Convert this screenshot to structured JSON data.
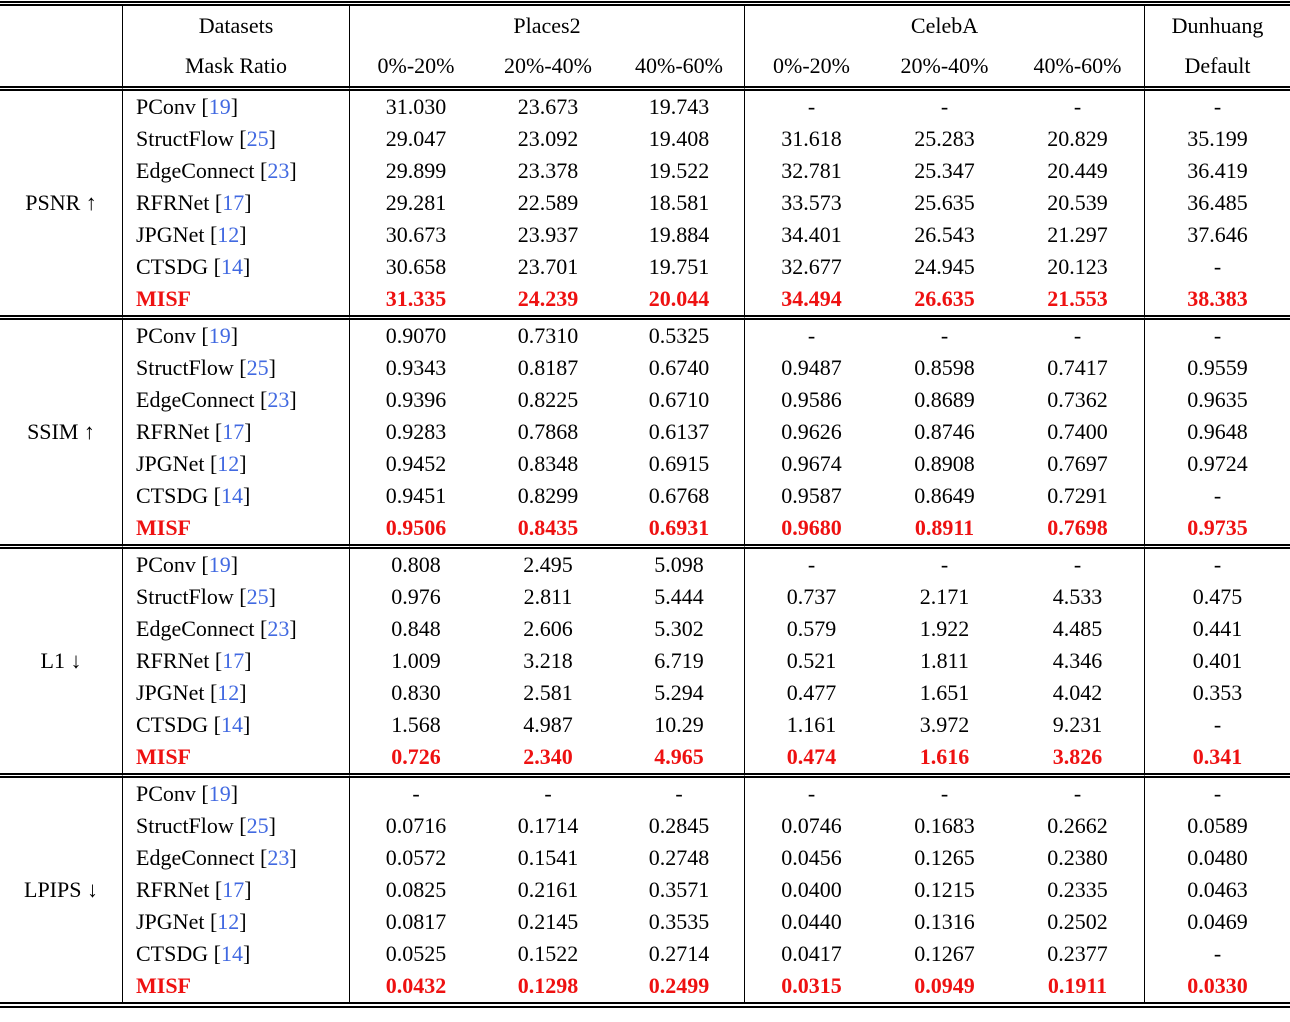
{
  "colors": {
    "highlight_red": "#ee1111",
    "citation_blue": "#4169e1",
    "rule_black": "#000000",
    "background": "#ffffff"
  },
  "header": {
    "datasets_label": "Datasets",
    "mask_ratio_label": "Mask Ratio",
    "groups": [
      {
        "name": "Places2",
        "cols": [
          "0%-20%",
          "20%-40%",
          "40%-60%"
        ]
      },
      {
        "name": "CelebA",
        "cols": [
          "0%-20%",
          "20%-40%",
          "40%-60%"
        ]
      },
      {
        "name": "Dunhuang",
        "cols": [
          "Default"
        ]
      }
    ]
  },
  "sections": [
    {
      "metric": "PSNR ↑",
      "rows": [
        {
          "method": "PConv",
          "ref": "19",
          "highlight": false,
          "values": [
            "31.030",
            "23.673",
            "19.743",
            "-",
            "-",
            "-",
            "-"
          ]
        },
        {
          "method": "StructFlow",
          "ref": "25",
          "highlight": false,
          "values": [
            "29.047",
            "23.092",
            "19.408",
            "31.618",
            "25.283",
            "20.829",
            "35.199"
          ]
        },
        {
          "method": "EdgeConnect",
          "ref": "23",
          "highlight": false,
          "values": [
            "29.899",
            "23.378",
            "19.522",
            "32.781",
            "25.347",
            "20.449",
            "36.419"
          ]
        },
        {
          "method": "RFRNet",
          "ref": "17",
          "highlight": false,
          "values": [
            "29.281",
            "22.589",
            "18.581",
            "33.573",
            "25.635",
            "20.539",
            "36.485"
          ]
        },
        {
          "method": "JPGNet",
          "ref": "12",
          "highlight": false,
          "values": [
            "30.673",
            "23.937",
            "19.884",
            "34.401",
            "26.543",
            "21.297",
            "37.646"
          ]
        },
        {
          "method": "CTSDG",
          "ref": "14",
          "highlight": false,
          "values": [
            "30.658",
            "23.701",
            "19.751",
            "32.677",
            "24.945",
            "20.123",
            "-"
          ]
        },
        {
          "method": "MISF",
          "ref": null,
          "highlight": true,
          "values": [
            "31.335",
            "24.239",
            "20.044",
            "34.494",
            "26.635",
            "21.553",
            "38.383"
          ]
        }
      ]
    },
    {
      "metric": "SSIM ↑",
      "rows": [
        {
          "method": "PConv",
          "ref": "19",
          "highlight": false,
          "values": [
            "0.9070",
            "0.7310",
            "0.5325",
            "-",
            "-",
            "-",
            "-"
          ]
        },
        {
          "method": "StructFlow",
          "ref": "25",
          "highlight": false,
          "values": [
            "0.9343",
            "0.8187",
            "0.6740",
            "0.9487",
            "0.8598",
            "0.7417",
            "0.9559"
          ]
        },
        {
          "method": "EdgeConnect",
          "ref": "23",
          "highlight": false,
          "values": [
            "0.9396",
            "0.8225",
            "0.6710",
            "0.9586",
            "0.8689",
            "0.7362",
            "0.9635"
          ]
        },
        {
          "method": "RFRNet",
          "ref": "17",
          "highlight": false,
          "values": [
            "0.9283",
            "0.7868",
            "0.6137",
            "0.9626",
            "0.8746",
            "0.7400",
            "0.9648"
          ]
        },
        {
          "method": "JPGNet",
          "ref": "12",
          "highlight": false,
          "values": [
            "0.9452",
            "0.8348",
            "0.6915",
            "0.9674",
            "0.8908",
            "0.7697",
            "0.9724"
          ]
        },
        {
          "method": "CTSDG",
          "ref": "14",
          "highlight": false,
          "values": [
            "0.9451",
            "0.8299",
            "0.6768",
            "0.9587",
            "0.8649",
            "0.7291",
            "-"
          ]
        },
        {
          "method": "MISF",
          "ref": null,
          "highlight": true,
          "values": [
            "0.9506",
            "0.8435",
            "0.6931",
            "0.9680",
            "0.8911",
            "0.7698",
            "0.9735"
          ]
        }
      ]
    },
    {
      "metric": "L1 ↓",
      "rows": [
        {
          "method": "PConv",
          "ref": "19",
          "highlight": false,
          "values": [
            "0.808",
            "2.495",
            "5.098",
            "-",
            "-",
            "-",
            "-"
          ]
        },
        {
          "method": "StructFlow",
          "ref": "25",
          "highlight": false,
          "values": [
            "0.976",
            "2.811",
            "5.444",
            "0.737",
            "2.171",
            "4.533",
            "0.475"
          ]
        },
        {
          "method": "EdgeConnect",
          "ref": "23",
          "highlight": false,
          "values": [
            "0.848",
            "2.606",
            "5.302",
            "0.579",
            "1.922",
            "4.485",
            "0.441"
          ]
        },
        {
          "method": "RFRNet",
          "ref": "17",
          "highlight": false,
          "values": [
            "1.009",
            "3.218",
            "6.719",
            "0.521",
            "1.811",
            "4.346",
            "0.401"
          ]
        },
        {
          "method": "JPGNet",
          "ref": "12",
          "highlight": false,
          "values": [
            "0.830",
            "2.581",
            "5.294",
            "0.477",
            "1.651",
            "4.042",
            "0.353"
          ]
        },
        {
          "method": "CTSDG",
          "ref": "14",
          "highlight": false,
          "values": [
            "1.568",
            "4.987",
            "10.29",
            "1.161",
            "3.972",
            "9.231",
            "-"
          ]
        },
        {
          "method": "MISF",
          "ref": null,
          "highlight": true,
          "values": [
            "0.726",
            "2.340",
            "4.965",
            "0.474",
            "1.616",
            "3.826",
            "0.341"
          ]
        }
      ]
    },
    {
      "metric": "LPIPS ↓",
      "rows": [
        {
          "method": "PConv",
          "ref": "19",
          "highlight": false,
          "values": [
            "-",
            "-",
            "-",
            "-",
            "-",
            "-",
            "-"
          ]
        },
        {
          "method": "StructFlow",
          "ref": "25",
          "highlight": false,
          "values": [
            "0.0716",
            "0.1714",
            "0.2845",
            "0.0746",
            "0.1683",
            "0.2662",
            "0.0589"
          ]
        },
        {
          "method": "EdgeConnect",
          "ref": "23",
          "highlight": false,
          "values": [
            "0.0572",
            "0.1541",
            "0.2748",
            "0.0456",
            "0.1265",
            "0.2380",
            "0.0480"
          ]
        },
        {
          "method": "RFRNet",
          "ref": "17",
          "highlight": false,
          "values": [
            "0.0825",
            "0.2161",
            "0.3571",
            "0.0400",
            "0.1215",
            "0.2335",
            "0.0463"
          ]
        },
        {
          "method": "JPGNet",
          "ref": "12",
          "highlight": false,
          "values": [
            "0.0817",
            "0.2145",
            "0.3535",
            "0.0440",
            "0.1316",
            "0.2502",
            "0.0469"
          ]
        },
        {
          "method": "CTSDG",
          "ref": "14",
          "highlight": false,
          "values": [
            "0.0525",
            "0.1522",
            "0.2714",
            "0.0417",
            "0.1267",
            "0.2377",
            "-"
          ]
        },
        {
          "method": "MISF",
          "ref": null,
          "highlight": true,
          "values": [
            "0.0432",
            "0.1298",
            "0.2499",
            "0.0315",
            "0.0949",
            "0.1911",
            "0.0330"
          ]
        }
      ]
    }
  ]
}
